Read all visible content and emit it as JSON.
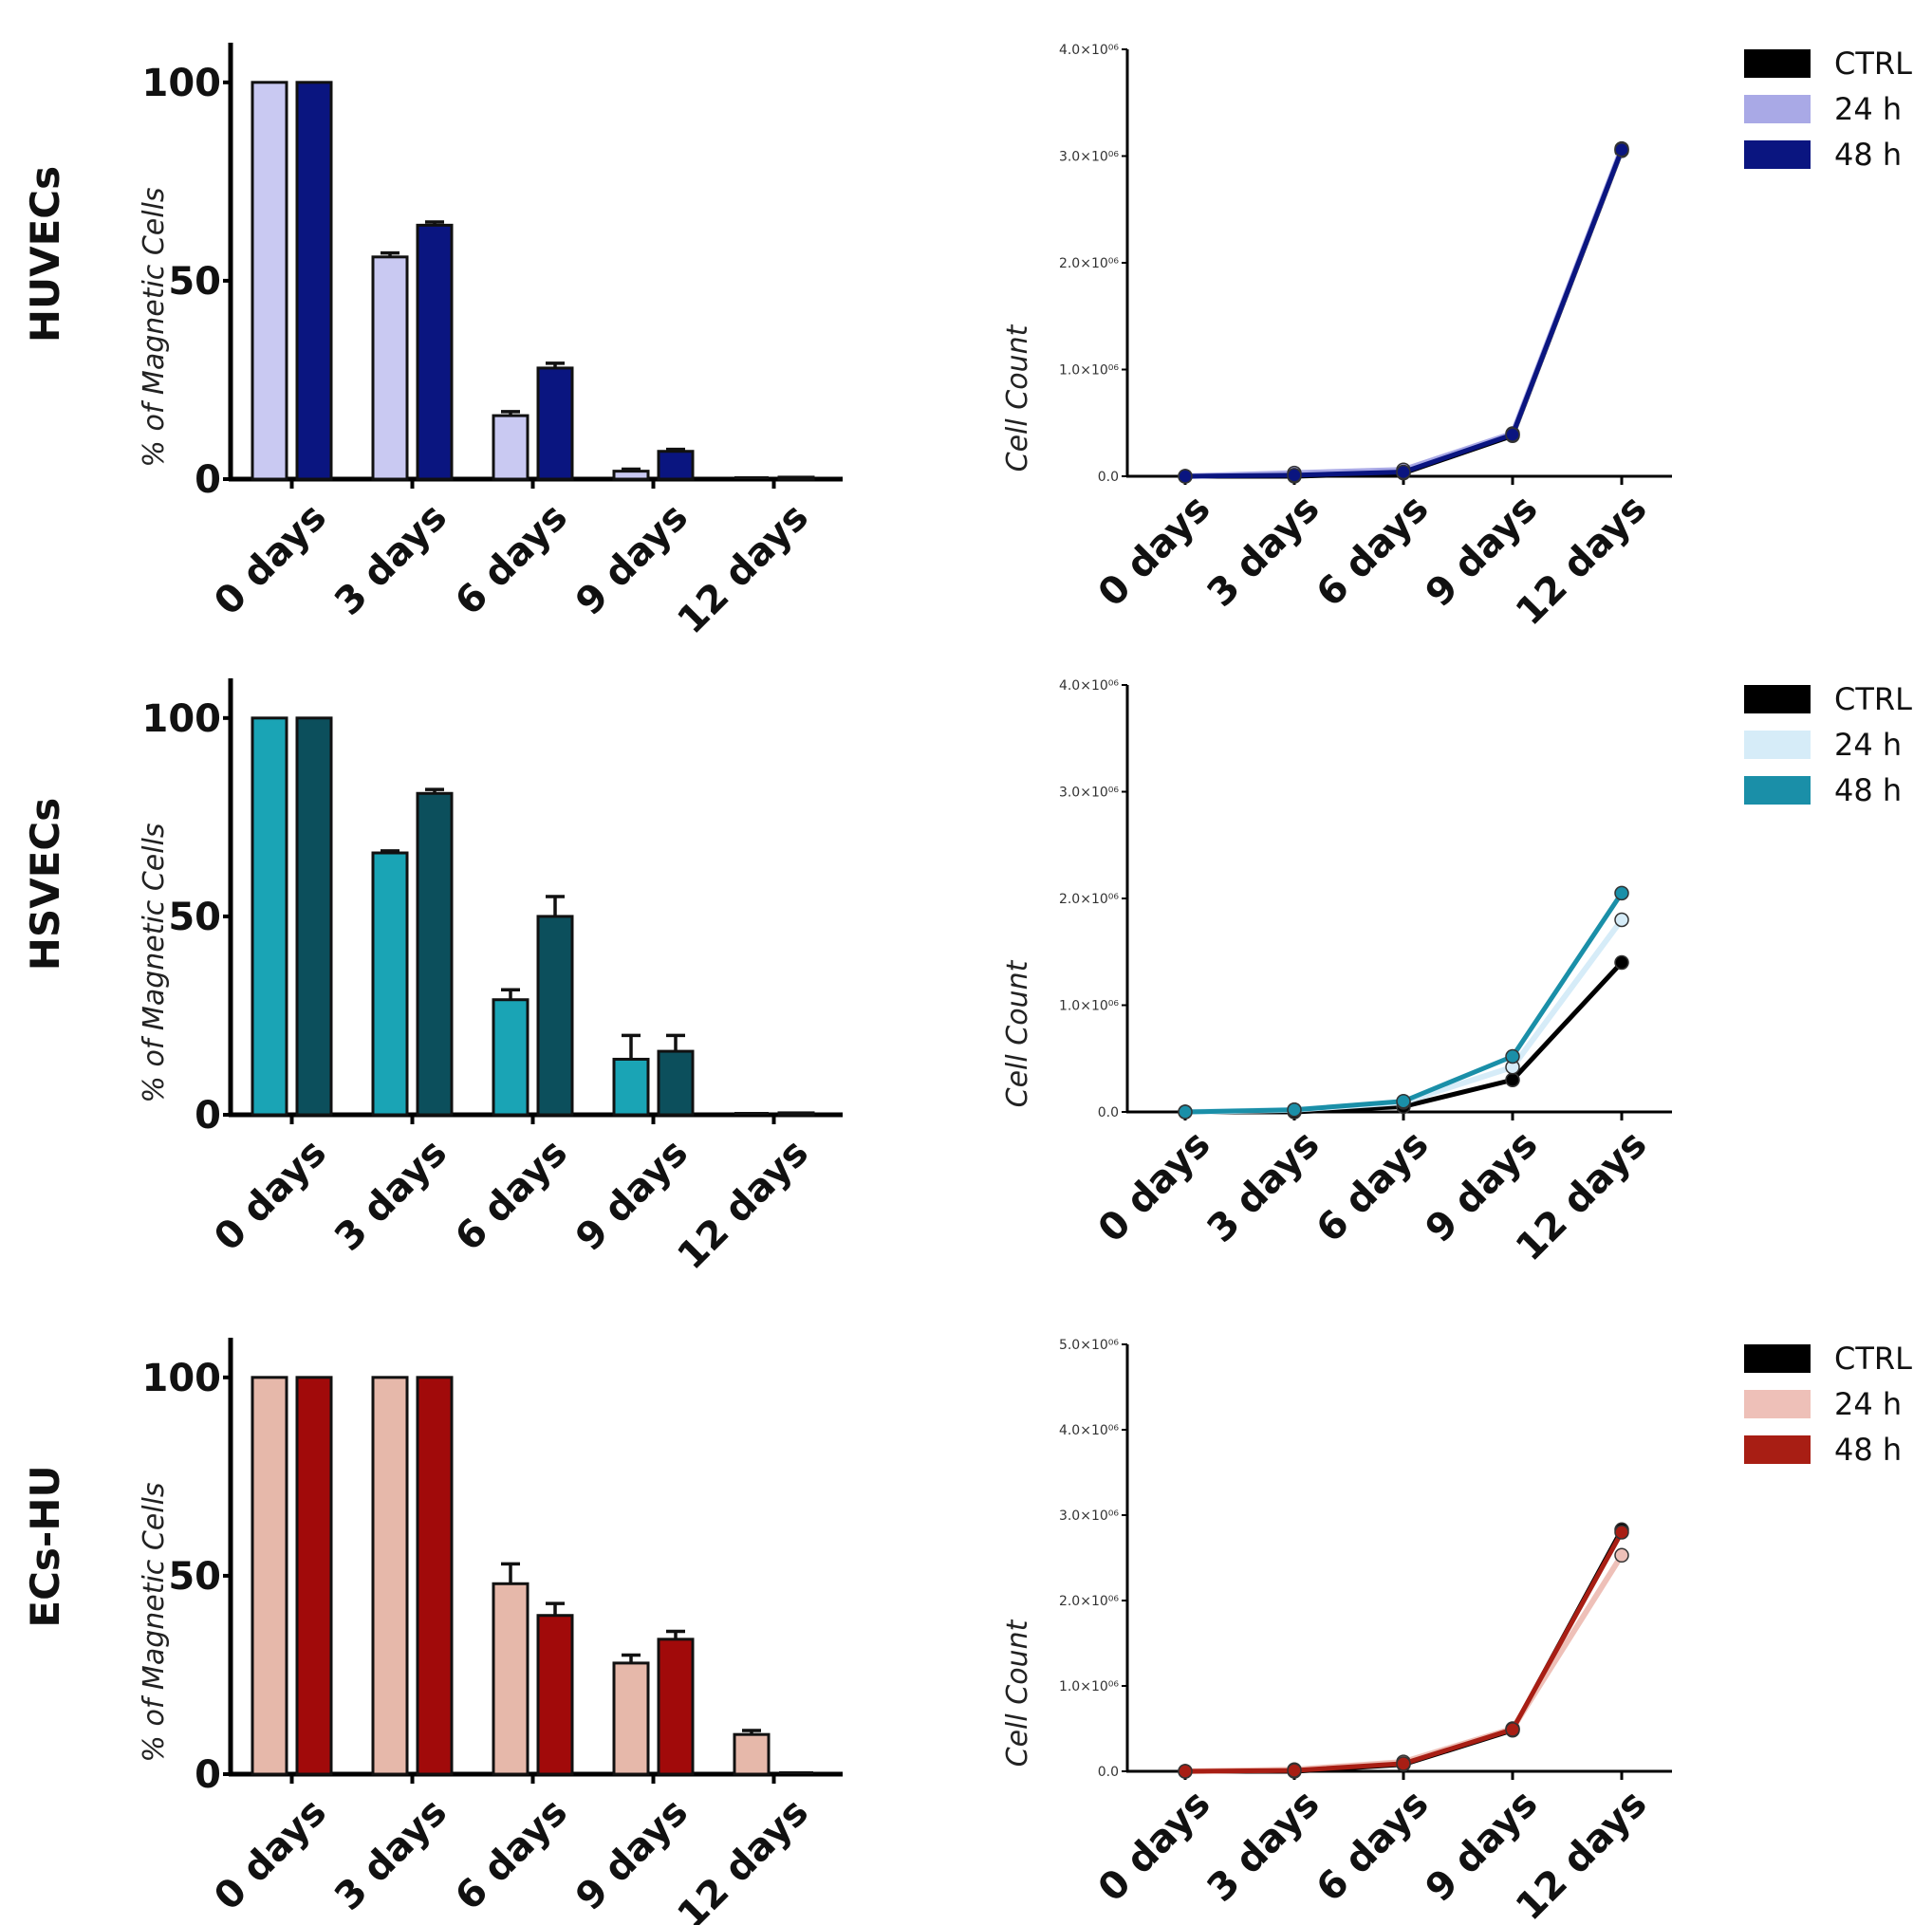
{
  "chart_data": [
    {
      "row_label": "HUVECs",
      "type": "bar",
      "title": "",
      "xlabel": "",
      "ylabel": "% of Magnetic Cells",
      "ylim": [
        0,
        110
      ],
      "yticks": [
        0,
        50,
        100
      ],
      "ytick_labels": [
        "0",
        "50",
        "100"
      ],
      "categories": [
        "0 days",
        "3 days",
        "6 days",
        "9 days",
        "12 days"
      ],
      "series": [
        {
          "name": "24 h",
          "color": "#c9c9f2",
          "values": [
            100,
            56,
            16,
            2,
            0
          ],
          "errors": [
            0,
            1,
            1,
            0.5,
            0
          ]
        },
        {
          "name": "48 h",
          "color": "#0a1580",
          "values": [
            100,
            64,
            28,
            7,
            0.5
          ],
          "errors": [
            0,
            0.8,
            1.2,
            0.5,
            0.2
          ]
        }
      ]
    },
    {
      "row_label": "HUVECs",
      "type": "line",
      "title": "",
      "xlabel": "",
      "ylabel": "Cell Count",
      "ylim": [
        0,
        4000000
      ],
      "yticks": [
        0,
        1000000,
        2000000,
        3000000,
        4000000
      ],
      "ytick_labels": [
        "0.0",
        "1.0×10⁰⁶",
        "2.0×10⁰⁶",
        "3.0×10⁰⁶",
        "4.0×10⁰⁶"
      ],
      "categories": [
        "0 days",
        "3 days",
        "6 days",
        "9 days",
        "12 days"
      ],
      "legend": [
        "CTRL",
        "24 h",
        "48 h"
      ],
      "legend_position": "top-right",
      "series": [
        {
          "name": "CTRL",
          "color": "#000000",
          "values": [
            0,
            0,
            30000,
            380000,
            3050000
          ]
        },
        {
          "name": "24 h",
          "color": "#a9a9e6",
          "values": [
            0,
            30000,
            60000,
            400000,
            3070000
          ]
        },
        {
          "name": "48 h",
          "color": "#0a1580",
          "values": [
            0,
            10000,
            40000,
            390000,
            3060000
          ]
        }
      ]
    },
    {
      "row_label": "HSVECs",
      "type": "bar",
      "title": "",
      "xlabel": "",
      "ylabel": "% of Magnetic Cells",
      "ylim": [
        0,
        110
      ],
      "yticks": [
        0,
        50,
        100
      ],
      "ytick_labels": [
        "0",
        "50",
        "100"
      ],
      "categories": [
        "0 days",
        "3 days",
        "6 days",
        "9 days",
        "12 days"
      ],
      "series": [
        {
          "name": "24 h",
          "color": "#1aa4b5",
          "values": [
            100,
            66,
            29,
            14,
            0
          ],
          "errors": [
            0,
            0.5,
            2.5,
            6,
            0
          ]
        },
        {
          "name": "48 h",
          "color": "#0c4f5c",
          "values": [
            100,
            81,
            50,
            16,
            0.5
          ],
          "errors": [
            0,
            1,
            5,
            4,
            0.2
          ]
        }
      ]
    },
    {
      "row_label": "HSVECs",
      "type": "line",
      "title": "",
      "xlabel": "",
      "ylabel": "Cell Count",
      "ylim": [
        0,
        4000000
      ],
      "yticks": [
        0,
        1000000,
        2000000,
        3000000,
        4000000
      ],
      "ytick_labels": [
        "0.0",
        "1.0×10⁰⁶",
        "2.0×10⁰⁶",
        "3.0×10⁰⁶",
        "4.0×10⁰⁶"
      ],
      "categories": [
        "0 days",
        "3 days",
        "6 days",
        "9 days",
        "12 days"
      ],
      "legend": [
        "CTRL",
        "24 h",
        "48 h"
      ],
      "legend_position": "top-right",
      "series": [
        {
          "name": "CTRL",
          "color": "#000000",
          "values": [
            0,
            0,
            50000,
            300000,
            1400000
          ]
        },
        {
          "name": "24 h",
          "color": "#d6ecf8",
          "values": [
            0,
            20000,
            90000,
            420000,
            1800000
          ]
        },
        {
          "name": "48 h",
          "color": "#1a8fa8",
          "values": [
            0,
            20000,
            100000,
            520000,
            2050000
          ]
        }
      ]
    },
    {
      "row_label": "ECs-HU",
      "type": "bar",
      "title": "",
      "xlabel": "",
      "ylabel": "% of Magnetic Cells",
      "ylim": [
        0,
        110
      ],
      "yticks": [
        0,
        50,
        100
      ],
      "ytick_labels": [
        "0",
        "50",
        "100"
      ],
      "categories": [
        "0 days",
        "3 days",
        "6 days",
        "9 days",
        "12 days"
      ],
      "series": [
        {
          "name": "24 h",
          "color": "#e6b8aa",
          "values": [
            100,
            100,
            48,
            28,
            10
          ],
          "errors": [
            0,
            0,
            5,
            2,
            1
          ]
        },
        {
          "name": "48 h",
          "color": "#a10a0a",
          "values": [
            100,
            100,
            40,
            34,
            0
          ],
          "errors": [
            0,
            0,
            3,
            2,
            0
          ]
        }
      ]
    },
    {
      "row_label": "ECs-HU",
      "type": "line",
      "title": "",
      "xlabel": "",
      "ylabel": "Cell Count",
      "ylim": [
        0,
        5000000
      ],
      "yticks": [
        0,
        1000000,
        2000000,
        3000000,
        4000000,
        5000000
      ],
      "ytick_labels": [
        "0.0",
        "1.0×10⁰⁶",
        "2.0×10⁰⁶",
        "3.0×10⁰⁶",
        "4.0×10⁰⁶",
        "5.0×10⁰⁶"
      ],
      "categories": [
        "0 days",
        "3 days",
        "6 days",
        "9 days",
        "12 days"
      ],
      "legend": [
        "CTRL",
        "24 h",
        "48 h"
      ],
      "legend_position": "top-right",
      "series": [
        {
          "name": "CTRL",
          "color": "#000000",
          "values": [
            0,
            0,
            80000,
            480000,
            2830000
          ]
        },
        {
          "name": "24 h",
          "color": "#eec0b8",
          "values": [
            0,
            20000,
            110000,
            500000,
            2530000
          ]
        },
        {
          "name": "48 h",
          "color": "#a81e14",
          "values": [
            0,
            10000,
            90000,
            490000,
            2800000
          ]
        }
      ]
    }
  ]
}
